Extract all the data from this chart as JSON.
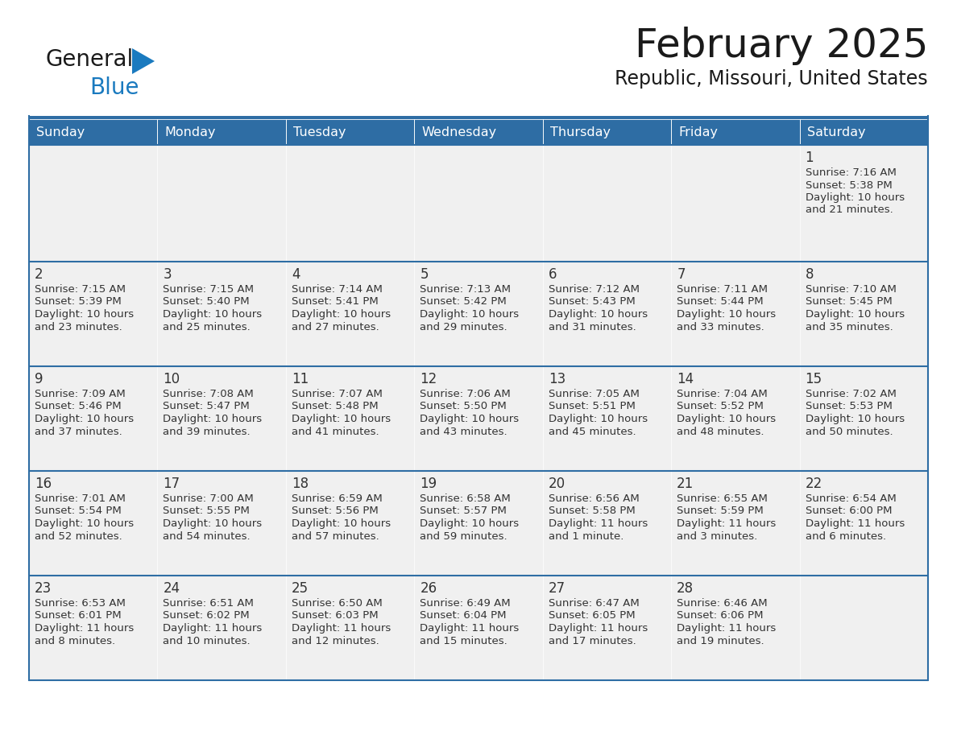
{
  "title": "February 2025",
  "subtitle": "Republic, Missouri, United States",
  "days_of_week": [
    "Sunday",
    "Monday",
    "Tuesday",
    "Wednesday",
    "Thursday",
    "Friday",
    "Saturday"
  ],
  "header_bg": "#2E6DA4",
  "header_text_color": "#FFFFFF",
  "cell_bg": "#F0F0F0",
  "line_color": "#2E6DA4",
  "text_color": "#333333",
  "day_number_color": "#333333",
  "logo_general_color": "#1a1a1a",
  "logo_blue_color": "#1a7abf",
  "title_color": "#1a1a1a",
  "weeks": [
    [
      {
        "day": null,
        "info": null
      },
      {
        "day": null,
        "info": null
      },
      {
        "day": null,
        "info": null
      },
      {
        "day": null,
        "info": null
      },
      {
        "day": null,
        "info": null
      },
      {
        "day": null,
        "info": null
      },
      {
        "day": 1,
        "info": "Sunrise: 7:16 AM\nSunset: 5:38 PM\nDaylight: 10 hours\nand 21 minutes."
      }
    ],
    [
      {
        "day": 2,
        "info": "Sunrise: 7:15 AM\nSunset: 5:39 PM\nDaylight: 10 hours\nand 23 minutes."
      },
      {
        "day": 3,
        "info": "Sunrise: 7:15 AM\nSunset: 5:40 PM\nDaylight: 10 hours\nand 25 minutes."
      },
      {
        "day": 4,
        "info": "Sunrise: 7:14 AM\nSunset: 5:41 PM\nDaylight: 10 hours\nand 27 minutes."
      },
      {
        "day": 5,
        "info": "Sunrise: 7:13 AM\nSunset: 5:42 PM\nDaylight: 10 hours\nand 29 minutes."
      },
      {
        "day": 6,
        "info": "Sunrise: 7:12 AM\nSunset: 5:43 PM\nDaylight: 10 hours\nand 31 minutes."
      },
      {
        "day": 7,
        "info": "Sunrise: 7:11 AM\nSunset: 5:44 PM\nDaylight: 10 hours\nand 33 minutes."
      },
      {
        "day": 8,
        "info": "Sunrise: 7:10 AM\nSunset: 5:45 PM\nDaylight: 10 hours\nand 35 minutes."
      }
    ],
    [
      {
        "day": 9,
        "info": "Sunrise: 7:09 AM\nSunset: 5:46 PM\nDaylight: 10 hours\nand 37 minutes."
      },
      {
        "day": 10,
        "info": "Sunrise: 7:08 AM\nSunset: 5:47 PM\nDaylight: 10 hours\nand 39 minutes."
      },
      {
        "day": 11,
        "info": "Sunrise: 7:07 AM\nSunset: 5:48 PM\nDaylight: 10 hours\nand 41 minutes."
      },
      {
        "day": 12,
        "info": "Sunrise: 7:06 AM\nSunset: 5:50 PM\nDaylight: 10 hours\nand 43 minutes."
      },
      {
        "day": 13,
        "info": "Sunrise: 7:05 AM\nSunset: 5:51 PM\nDaylight: 10 hours\nand 45 minutes."
      },
      {
        "day": 14,
        "info": "Sunrise: 7:04 AM\nSunset: 5:52 PM\nDaylight: 10 hours\nand 48 minutes."
      },
      {
        "day": 15,
        "info": "Sunrise: 7:02 AM\nSunset: 5:53 PM\nDaylight: 10 hours\nand 50 minutes."
      }
    ],
    [
      {
        "day": 16,
        "info": "Sunrise: 7:01 AM\nSunset: 5:54 PM\nDaylight: 10 hours\nand 52 minutes."
      },
      {
        "day": 17,
        "info": "Sunrise: 7:00 AM\nSunset: 5:55 PM\nDaylight: 10 hours\nand 54 minutes."
      },
      {
        "day": 18,
        "info": "Sunrise: 6:59 AM\nSunset: 5:56 PM\nDaylight: 10 hours\nand 57 minutes."
      },
      {
        "day": 19,
        "info": "Sunrise: 6:58 AM\nSunset: 5:57 PM\nDaylight: 10 hours\nand 59 minutes."
      },
      {
        "day": 20,
        "info": "Sunrise: 6:56 AM\nSunset: 5:58 PM\nDaylight: 11 hours\nand 1 minute."
      },
      {
        "day": 21,
        "info": "Sunrise: 6:55 AM\nSunset: 5:59 PM\nDaylight: 11 hours\nand 3 minutes."
      },
      {
        "day": 22,
        "info": "Sunrise: 6:54 AM\nSunset: 6:00 PM\nDaylight: 11 hours\nand 6 minutes."
      }
    ],
    [
      {
        "day": 23,
        "info": "Sunrise: 6:53 AM\nSunset: 6:01 PM\nDaylight: 11 hours\nand 8 minutes."
      },
      {
        "day": 24,
        "info": "Sunrise: 6:51 AM\nSunset: 6:02 PM\nDaylight: 11 hours\nand 10 minutes."
      },
      {
        "day": 25,
        "info": "Sunrise: 6:50 AM\nSunset: 6:03 PM\nDaylight: 11 hours\nand 12 minutes."
      },
      {
        "day": 26,
        "info": "Sunrise: 6:49 AM\nSunset: 6:04 PM\nDaylight: 11 hours\nand 15 minutes."
      },
      {
        "day": 27,
        "info": "Sunrise: 6:47 AM\nSunset: 6:05 PM\nDaylight: 11 hours\nand 17 minutes."
      },
      {
        "day": 28,
        "info": "Sunrise: 6:46 AM\nSunset: 6:06 PM\nDaylight: 11 hours\nand 19 minutes."
      },
      {
        "day": null,
        "info": null
      }
    ]
  ],
  "figsize": [
    11.88,
    9.18
  ],
  "dpi": 100
}
